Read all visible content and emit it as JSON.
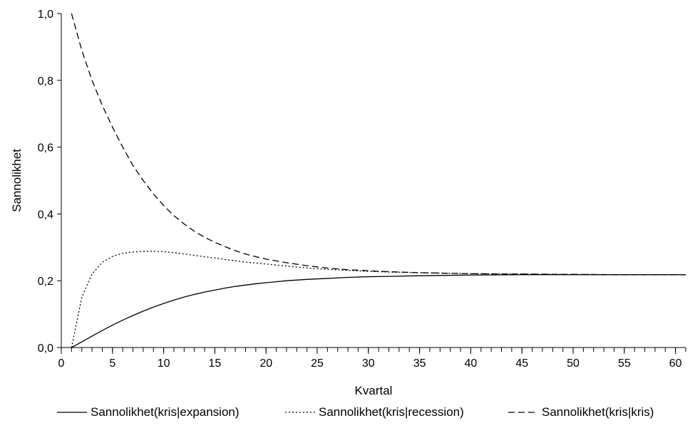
{
  "chart_data": {
    "type": "line",
    "title": "",
    "xlabel": "Kvartal",
    "ylabel": "Sannolikhet",
    "xlim": [
      0,
      61
    ],
    "ylim": [
      0,
      1
    ],
    "x_ticks": [
      0,
      5,
      10,
      15,
      20,
      25,
      30,
      35,
      40,
      45,
      50,
      55,
      60
    ],
    "x_tick_labels": [
      "0",
      "5",
      "10",
      "15",
      "20",
      "25",
      "30",
      "35",
      "40",
      "45",
      "50",
      "55",
      "60"
    ],
    "y_ticks": [
      0,
      0.2,
      0.4,
      0.6,
      0.8,
      1.0
    ],
    "y_tick_labels": [
      "0,0",
      "0,2",
      "0,4",
      "0,6",
      "0,8",
      "1,0"
    ],
    "grid": false,
    "legend_position": "bottom",
    "x": [
      1,
      2,
      3,
      4,
      5,
      6,
      7,
      8,
      9,
      10,
      11,
      12,
      13,
      14,
      15,
      16,
      17,
      18,
      19,
      20,
      22,
      24,
      26,
      28,
      30,
      32,
      35,
      40,
      45,
      50,
      55,
      61
    ],
    "series": [
      {
        "name": "Sannolikhet(kris|expansion)",
        "style": "solid",
        "color": "#000000",
        "values": [
          0.0,
          0.017,
          0.034,
          0.051,
          0.067,
          0.082,
          0.096,
          0.109,
          0.121,
          0.132,
          0.142,
          0.151,
          0.159,
          0.166,
          0.172,
          0.178,
          0.183,
          0.187,
          0.191,
          0.194,
          0.2,
          0.204,
          0.207,
          0.21,
          0.212,
          0.213,
          0.215,
          0.217,
          0.218,
          0.218,
          0.218,
          0.218
        ]
      },
      {
        "name": "Sannolikhet(kris|recession)",
        "style": "dotted",
        "color": "#000000",
        "values": [
          0.0,
          0.15,
          0.22,
          0.255,
          0.273,
          0.282,
          0.286,
          0.288,
          0.288,
          0.287,
          0.284,
          0.28,
          0.276,
          0.272,
          0.268,
          0.264,
          0.26,
          0.256,
          0.253,
          0.25,
          0.244,
          0.238,
          0.234,
          0.231,
          0.228,
          0.226,
          0.224,
          0.221,
          0.22,
          0.219,
          0.218,
          0.218
        ]
      },
      {
        "name": "Sannolikhet(kris|kris)",
        "style": "dashed",
        "color": "#000000",
        "values": [
          1.0,
          0.89,
          0.8,
          0.725,
          0.66,
          0.6,
          0.545,
          0.5,
          0.46,
          0.425,
          0.395,
          0.37,
          0.348,
          0.33,
          0.315,
          0.302,
          0.29,
          0.28,
          0.272,
          0.265,
          0.254,
          0.245,
          0.238,
          0.233,
          0.23,
          0.227,
          0.224,
          0.221,
          0.22,
          0.219,
          0.218,
          0.218
        ]
      }
    ]
  }
}
